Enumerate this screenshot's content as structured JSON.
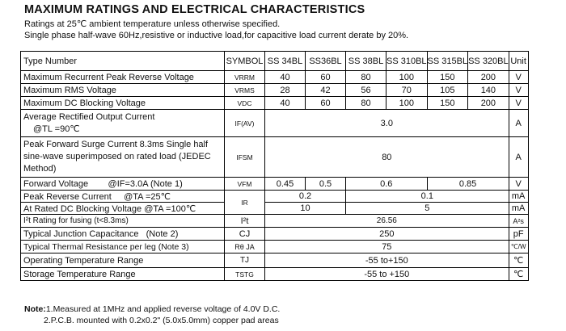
{
  "title": "MAXIMUM RATINGS AND ELECTRICAL CHARACTERISTICS",
  "conditions": [
    "Ratings at 25℃ ambient temperature unless otherwise specified.",
    "Single phase half-wave 60Hz,resistive or inductive load,for capacitive load current derate by 20%."
  ],
  "header": {
    "type": "Type Number",
    "symbol": "SYMBOL",
    "parts": [
      "SS 34BL",
      "SS36BL",
      "SS 38BL",
      "SS 310BL",
      "SS 315BL",
      "SS 320BL"
    ],
    "unit": "Unit"
  },
  "rows": {
    "vrrm": {
      "label": "Maximum Recurrent Peak Reverse Voltage",
      "symbol": "VRRM",
      "values": [
        "40",
        "60",
        "80",
        "100",
        "150",
        "200"
      ],
      "unit": "V"
    },
    "vrms": {
      "label": "Maximum RMS Voltage",
      "symbol": "VRMS",
      "values": [
        "28",
        "42",
        "56",
        "70",
        "105",
        "140"
      ],
      "unit": "V"
    },
    "vdc": {
      "label": "Maximum DC Blocking Voltage",
      "symbol": "VDC",
      "values": [
        "40",
        "60",
        "80",
        "100",
        "150",
        "200"
      ],
      "unit": "V"
    },
    "iav": {
      "label1": "Average Rectified Output Current",
      "label2": "@TL =90℃",
      "symbol": "IF(AV)",
      "value": "3.0",
      "unit": "A"
    },
    "ifsm": {
      "label": "Peak Forward Surge Current 8.3ms Single half sine-wave superimposed on rated load (JEDEC Method)",
      "symbol": "IFSM",
      "value": "80",
      "unit": "A"
    },
    "vfm": {
      "label": "Forward Voltage        @IF=3.0A (Note 1)",
      "symbol": "VFM",
      "v1": "0.45",
      "v2": "0.5",
      "v3": "0.6",
      "v4": "0.85",
      "unit": "V"
    },
    "ir1": {
      "label": "Peak Reverse Current     @TA =25℃",
      "symbol": "IR",
      "v1": "0.2",
      "v2": "0.1",
      "unit": "mA"
    },
    "ir2": {
      "label": "At Rated DC Blocking Voltage @TA =100℃",
      "v1": "10",
      "v2": "5",
      "unit": "mA"
    },
    "i2t": {
      "label": "I²t Rating for fusing (t<8.3ms)",
      "symbol": "I²t",
      "value": "26.56",
      "unit": "A²s"
    },
    "cj": {
      "label": "Typical Junction Capacitance   (Note 2)",
      "symbol": "CJ",
      "value": "250",
      "unit": "pF"
    },
    "rth": {
      "label": "Typical Thermal Resistance per leg (Note 3)",
      "symbol": "Rθ JA",
      "value": "75",
      "unit": "℃/W"
    },
    "tj": {
      "label": "Operating Temperature Range",
      "symbol": "TJ",
      "value": "-55 to+150",
      "unit": "℃"
    },
    "tstg": {
      "label": "Storage Temperature Range",
      "symbol": "TSTG",
      "value": "-55 to +150",
      "unit": "℃"
    }
  },
  "notes": {
    "lead": "Note:",
    "n1": "1.Measured at 1MHz and applied reverse voltage of 4.0V D.C.",
    "n2": "2.P.C.B. mounted with 0.2x0.2\" (5.0x5.0mm) copper pad areas"
  }
}
